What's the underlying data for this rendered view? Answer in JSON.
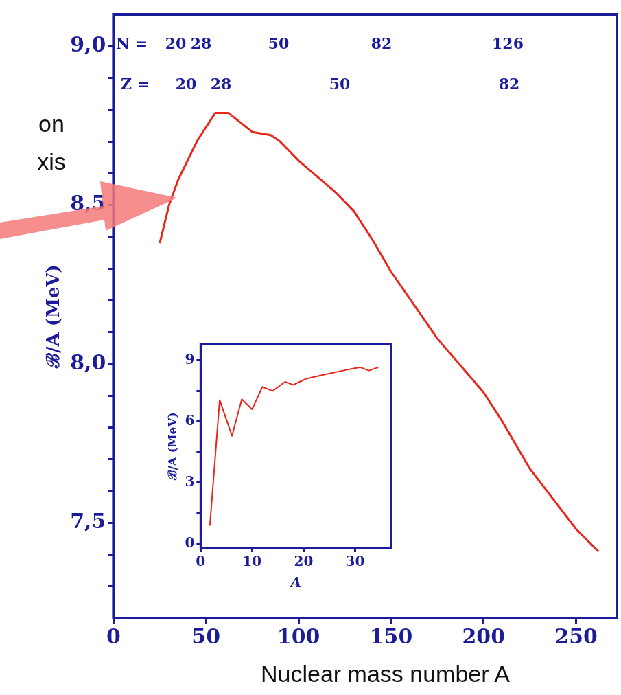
{
  "chart_data": [
    {
      "type": "line",
      "xlabel": "Nuclear mass number A",
      "ylabel": "ℬ/A (MeV)",
      "x": [
        25,
        30,
        35,
        45,
        55,
        62,
        75,
        85,
        90,
        100,
        120,
        130,
        140,
        150,
        175,
        200,
        210,
        225,
        250,
        262
      ],
      "series": [
        {
          "color": "#e8261a",
          "values": [
            8.38,
            8.5,
            8.58,
            8.7,
            8.79,
            8.79,
            8.73,
            8.72,
            8.7,
            8.64,
            8.54,
            8.48,
            8.39,
            8.29,
            8.08,
            7.91,
            7.82,
            7.67,
            7.48,
            7.41
          ]
        }
      ],
      "xlim": [
        0,
        272
      ],
      "xticks": [
        0,
        50,
        100,
        150,
        200,
        250
      ],
      "ylim": [
        7.2,
        9.1
      ],
      "yticks": [
        {
          "value": 7.3,
          "label": null
        },
        {
          "value": 7.4,
          "label": null
        },
        {
          "value": 7.5,
          "label": "7,5"
        },
        {
          "value": 7.6,
          "label": null
        },
        {
          "value": 7.7,
          "label": null
        },
        {
          "value": 7.8,
          "label": null
        },
        {
          "value": 7.9,
          "label": null
        },
        {
          "value": 8.0,
          "label": "8,0"
        },
        {
          "value": 8.1,
          "label": null
        },
        {
          "value": 8.2,
          "label": null
        },
        {
          "value": 8.3,
          "label": null
        },
        {
          "value": 8.4,
          "label": null
        },
        {
          "value": 8.5,
          "label": "8,5"
        },
        {
          "value": 8.6,
          "label": null
        },
        {
          "value": 8.7,
          "label": null
        },
        {
          "value": 8.8,
          "label": null
        },
        {
          "value": 8.9,
          "label": null
        },
        {
          "value": 9.0,
          "label": "9,0"
        }
      ],
      "grid": false,
      "legend": false,
      "marker": "none",
      "line_style": "solid",
      "annotations": [
        "on",
        "xis",
        "N =",
        "20",
        "28",
        "50",
        "82",
        "126",
        "Z =",
        "20",
        "28",
        "50",
        "82"
      ]
    },
    {
      "type": "line",
      "xlabel": "A",
      "ylabel": "ℬ/A (MeV)",
      "x": [
        1.8,
        2.7,
        3.7,
        6.1,
        8.0,
        10,
        12,
        14,
        16.4,
        18,
        20.5,
        24,
        28.6,
        31,
        32.7,
        34.5
      ],
      "series": [
        {
          "color": "#e8261a",
          "values": [
            0.9,
            3.8,
            7.06,
            5.3,
            7.1,
            6.6,
            7.7,
            7.5,
            7.95,
            7.8,
            8.1,
            8.3,
            8.55,
            8.66,
            8.5,
            8.66
          ]
        }
      ],
      "xlim": [
        0,
        37
      ],
      "xticks": [
        0,
        10,
        20,
        30
      ],
      "ylim": [
        -0.2,
        9.8
      ],
      "yticks": [
        0,
        {
          "value": 1.5,
          "label": null
        },
        3,
        {
          "value": 4.5,
          "label": null
        },
        6,
        {
          "value": 7.5,
          "label": null
        },
        9
      ],
      "grid": false,
      "legend": false,
      "marker": "none",
      "line_style": "solid"
    }
  ]
}
